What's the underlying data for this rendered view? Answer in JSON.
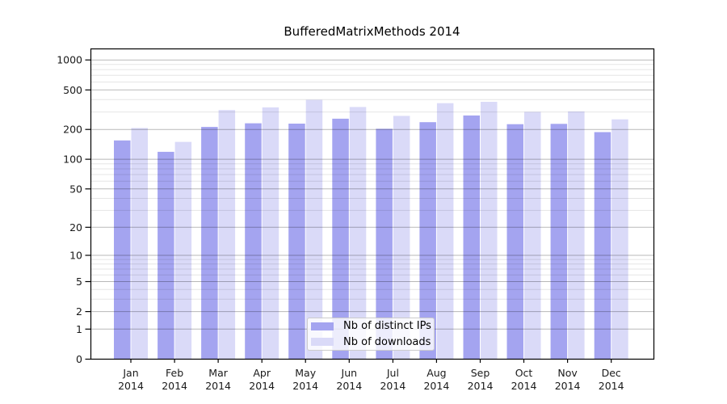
{
  "chart_data": {
    "type": "bar",
    "title": "BufferedMatrixMethods 2014",
    "categories": [
      {
        "month": "Jan",
        "year": "2014"
      },
      {
        "month": "Feb",
        "year": "2014"
      },
      {
        "month": "Mar",
        "year": "2014"
      },
      {
        "month": "Apr",
        "year": "2014"
      },
      {
        "month": "May",
        "year": "2014"
      },
      {
        "month": "Jun",
        "year": "2014"
      },
      {
        "month": "Jul",
        "year": "2014"
      },
      {
        "month": "Aug",
        "year": "2014"
      },
      {
        "month": "Sep",
        "year": "2014"
      },
      {
        "month": "Oct",
        "year": "2014"
      },
      {
        "month": "Nov",
        "year": "2014"
      },
      {
        "month": "Dec",
        "year": "2014"
      }
    ],
    "series": [
      {
        "name": "Nb of distinct IPs",
        "color": "#a4a4f0",
        "values": [
          155,
          119,
          212,
          231,
          229,
          257,
          203,
          237,
          277,
          226,
          228,
          188
        ]
      },
      {
        "name": "Nb of downloads",
        "color": "#dadaf8",
        "values": [
          207,
          150,
          314,
          334,
          398,
          337,
          274,
          368,
          380,
          301,
          304,
          253
        ]
      }
    ],
    "y_axis": {
      "scale": "log1p",
      "ticks": [
        0,
        1,
        2,
        5,
        10,
        20,
        50,
        100,
        200,
        500,
        1000
      ],
      "minor_gridlines": [
        3,
        4,
        6,
        7,
        8,
        9,
        30,
        40,
        60,
        70,
        80,
        90,
        300,
        400,
        600,
        700,
        800,
        900
      ],
      "top_value": 1300
    },
    "legend": {
      "position": "lower-center"
    },
    "colors": {
      "axis": "#000000",
      "tick_text": "#1a1a1a",
      "grid_major": "rgba(0,0,0,0.28)",
      "grid_minor": "rgba(0,0,0,0.10)",
      "background": "#ffffff"
    }
  }
}
